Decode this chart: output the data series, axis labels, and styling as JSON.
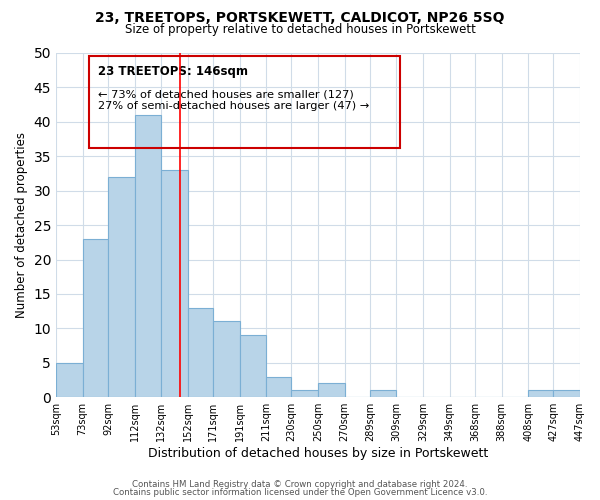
{
  "title": "23, TREETOPS, PORTSKEWETT, CALDICOT, NP26 5SQ",
  "subtitle": "Size of property relative to detached houses in Portskewett",
  "xlabel": "Distribution of detached houses by size in Portskewett",
  "ylabel": "Number of detached properties",
  "bar_color": "#b8d4e8",
  "bar_edge_color": "#7bafd4",
  "bin_edges": [
    53,
    73,
    92,
    112,
    132,
    152,
    171,
    191,
    211,
    230,
    250,
    270,
    289,
    309,
    329,
    349,
    368,
    388,
    408,
    427,
    447
  ],
  "bin_labels": [
    "53sqm",
    "73sqm",
    "92sqm",
    "112sqm",
    "132sqm",
    "152sqm",
    "171sqm",
    "191sqm",
    "211sqm",
    "230sqm",
    "250sqm",
    "270sqm",
    "289sqm",
    "309sqm",
    "329sqm",
    "349sqm",
    "368sqm",
    "388sqm",
    "408sqm",
    "427sqm",
    "447sqm"
  ],
  "counts": [
    5,
    23,
    32,
    41,
    33,
    13,
    11,
    9,
    3,
    1,
    2,
    0,
    1,
    0,
    0,
    0,
    0,
    0,
    1,
    1
  ],
  "ylim": [
    0,
    50
  ],
  "yticks": [
    0,
    5,
    10,
    15,
    20,
    25,
    30,
    35,
    40,
    45,
    50
  ],
  "vline_x": 146,
  "annotation_title": "23 TREETOPS: 146sqm",
  "annotation_line1": "← 73% of detached houses are smaller (127)",
  "annotation_line2": "27% of semi-detached houses are larger (47) →",
  "footer_line1": "Contains HM Land Registry data © Crown copyright and database right 2024.",
  "footer_line2": "Contains public sector information licensed under the Open Government Licence v3.0.",
  "background_color": "#ffffff",
  "grid_color": "#d0dce8"
}
